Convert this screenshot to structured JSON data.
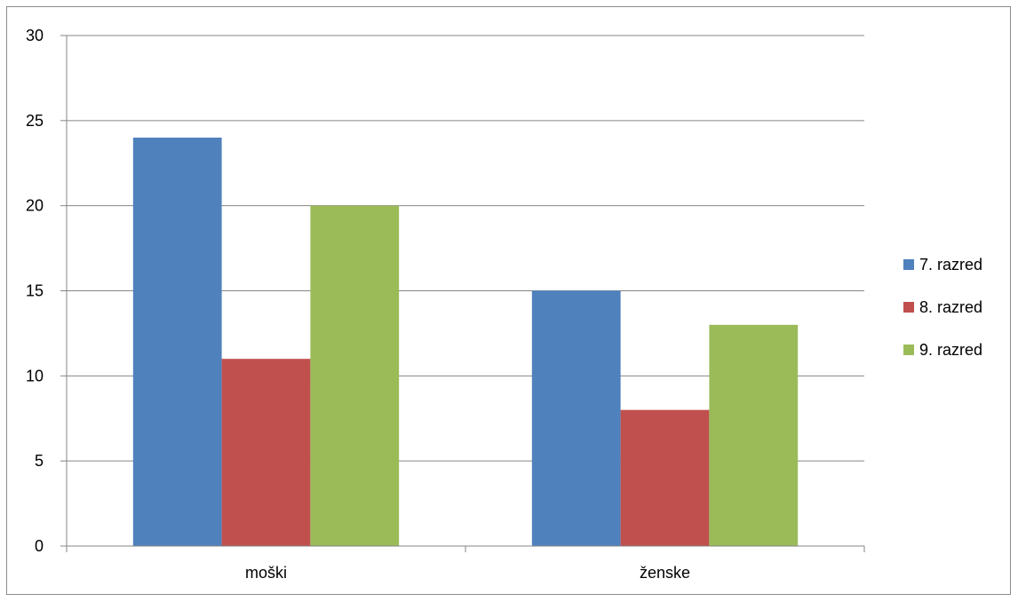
{
  "chart_data": {
    "type": "bar",
    "categories": [
      "moški",
      "ženske"
    ],
    "series": [
      {
        "name": "7. razred",
        "values": [
          24,
          15
        ],
        "color": "#4F81BD"
      },
      {
        "name": "8. razred",
        "values": [
          11,
          8
        ],
        "color": "#C0504D"
      },
      {
        "name": "9. razred",
        "values": [
          20,
          13
        ],
        "color": "#9BBB59"
      }
    ],
    "ylim": [
      0,
      30
    ],
    "yticks": [
      0,
      5,
      10,
      15,
      20,
      25,
      30
    ],
    "grid": true,
    "legend": "right",
    "title": "",
    "xlabel": "",
    "ylabel": ""
  }
}
